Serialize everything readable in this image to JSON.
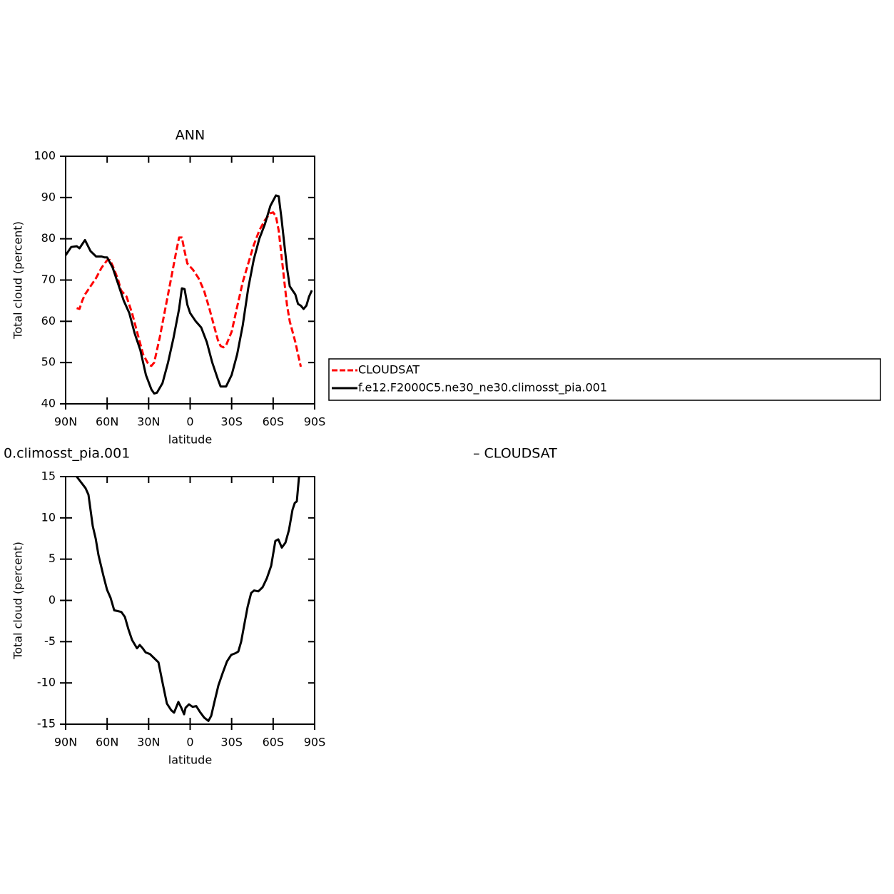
{
  "chart_data": [
    {
      "type": "line",
      "title": "ANN",
      "xlabel": "latitude",
      "ylabel": "Total cloud (percent)",
      "xlim": [
        90,
        -90
      ],
      "ylim": [
        40,
        100
      ],
      "xticks": [
        {
          "value": 90,
          "label": "90N"
        },
        {
          "value": 60,
          "label": "60N"
        },
        {
          "value": 30,
          "label": "30N"
        },
        0,
        {
          "value": -30,
          "label": "30S"
        },
        {
          "value": -60,
          "label": "60S"
        },
        {
          "value": -90,
          "label": "90S"
        }
      ],
      "yticks": [
        40,
        50,
        60,
        70,
        80,
        90,
        100
      ],
      "legend": "right",
      "series": [
        {
          "name": "CLOUDSAT",
          "color": "#ff0000",
          "dashed": true,
          "x": [
            82,
            80,
            78,
            76,
            72,
            68,
            64,
            60,
            58,
            56,
            52,
            50,
            46,
            42,
            38,
            34,
            30,
            28,
            26,
            22,
            18,
            14,
            10,
            8,
            6,
            4,
            2,
            -2,
            -6,
            -10,
            -14,
            -18,
            -20,
            -22,
            -24,
            -26,
            -30,
            -34,
            -38,
            -42,
            -46,
            -50,
            -54,
            -58,
            -60,
            -62,
            -64,
            -66,
            -68,
            -70,
            -72,
            -74,
            -76,
            -78,
            -80
          ],
          "values": [
            63.2,
            63,
            65,
            66.5,
            68.5,
            70.5,
            73,
            74.8,
            74.9,
            73.5,
            70,
            67.5,
            66,
            62,
            57,
            52,
            49.5,
            49.2,
            50,
            56,
            63,
            70,
            77,
            80.3,
            80.3,
            77,
            74,
            72.5,
            70.5,
            67.5,
            63,
            58,
            55.5,
            54,
            53.7,
            54.2,
            57.5,
            63.5,
            69.5,
            74,
            78.5,
            82,
            84.5,
            86.2,
            86.4,
            85.5,
            82,
            76,
            70,
            64,
            60,
            57.5,
            55,
            52,
            49
          ]
        },
        {
          "name": "f.e12.F2000C5.ne30_ne30.climosst_pia.001",
          "color": "#000000",
          "dashed": false,
          "x": [
            90,
            86,
            82,
            80,
            76,
            72,
            68,
            64,
            62,
            60,
            56,
            52,
            48,
            44,
            40,
            36,
            32,
            28,
            26,
            24,
            20,
            16,
            12,
            8,
            6,
            4,
            2,
            0,
            -4,
            -8,
            -12,
            -16,
            -20,
            -22,
            -26,
            -30,
            -34,
            -38,
            -42,
            -46,
            -50,
            -54,
            -58,
            -62,
            -64,
            -66,
            -68,
            -70,
            -72,
            -74,
            -76,
            -78,
            -80,
            -82,
            -84,
            -86,
            -88
          ],
          "values": [
            76,
            78,
            78.2,
            77.7,
            79.7,
            77,
            75.7,
            75.7,
            75.5,
            75.5,
            73,
            69,
            65,
            62,
            57,
            53,
            47,
            43.5,
            42.5,
            42.7,
            45,
            50,
            56,
            63,
            68,
            67.8,
            64,
            62,
            60,
            58.5,
            55,
            50,
            46,
            44.2,
            44.2,
            47,
            52,
            59,
            68,
            75,
            80,
            83.5,
            88,
            90.5,
            90.3,
            85,
            79,
            73,
            68.5,
            67.5,
            66.5,
            64.2,
            63.8,
            63,
            63.8,
            66,
            67.5
          ]
        }
      ]
    },
    {
      "type": "line",
      "title_left": "0.climosst_pia.001",
      "title_right": "– CLOUDSAT",
      "xlabel": "latitude",
      "ylabel": "Total cloud (percent)",
      "xlim": [
        90,
        -90
      ],
      "ylim": [
        -15,
        15
      ],
      "xticks": [
        {
          "value": 90,
          "label": "90N"
        },
        {
          "value": 60,
          "label": "60N"
        },
        {
          "value": 30,
          "label": "30N"
        },
        0,
        {
          "value": -30,
          "label": "30S"
        },
        {
          "value": -60,
          "label": "60S"
        },
        {
          "value": -90,
          "label": "90S"
        }
      ],
      "yticks": [
        -15,
        -10,
        -5,
        0,
        5,
        10,
        15
      ],
      "series": [
        {
          "color": "#000000",
          "dashed": false,
          "x": [
            82,
            75.6,
            73.5,
            70.4,
            68.3,
            66.3,
            62.7,
            60.1,
            57.5,
            54.9,
            52.3,
            49.7,
            47.2,
            44.6,
            42,
            38.4,
            36.4,
            34.3,
            32.2,
            29.1,
            26,
            22.9,
            19.9,
            16.8,
            13.7,
            11.6,
            8.5,
            6.4,
            4.4,
            3.3,
            0.8,
            -1.8,
            -4.4,
            -7,
            -10.1,
            -13.2,
            -15.2,
            -17.3,
            -20.4,
            -23.5,
            -26.6,
            -29.7,
            -32.8,
            -34.8,
            -36.9,
            -39.5,
            -41.5,
            -44.1,
            -46.2,
            -49.3,
            -52.4,
            -55.5,
            -58.6,
            -61.6,
            -63.7,
            -66.3,
            -68.9,
            -71.4,
            -74,
            -75.6,
            -77.1,
            -78.7
          ],
          "values": [
            15,
            13.6,
            12.8,
            9,
            7.5,
            5.5,
            3,
            1.3,
            0.3,
            -1.2,
            -1.3,
            -1.4,
            -2,
            -3.5,
            -4.8,
            -5.8,
            -5.4,
            -5.8,
            -6.3,
            -6.5,
            -7,
            -7.5,
            -10,
            -12.5,
            -13.3,
            -13.6,
            -12.3,
            -13,
            -13.8,
            -13,
            -12.6,
            -12.9,
            -12.8,
            -13.5,
            -14.2,
            -14.6,
            -14,
            -12.5,
            -10.3,
            -8.8,
            -7.4,
            -6.6,
            -6.4,
            -6.2,
            -5,
            -2.6,
            -0.8,
            0.9,
            1.2,
            1.1,
            1.6,
            2.7,
            4.2,
            7.2,
            7.4,
            6.4,
            7,
            8.5,
            11,
            11.8,
            12,
            15
          ]
        }
      ]
    }
  ]
}
